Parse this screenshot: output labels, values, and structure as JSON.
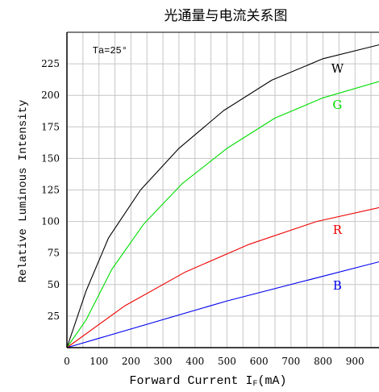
{
  "chart_data": {
    "type": "line",
    "title": "光通量与电流关系图",
    "xlabel": "Forward Current I",
    "xlabel_sub": "F",
    "xlabel_unit": "(mA)",
    "ylabel": "Relative Luminous Intensity",
    "annotation": "Ta=25°",
    "xlim": [
      0,
      975
    ],
    "ylim": [
      0,
      250
    ],
    "x_ticks": [
      0,
      100,
      200,
      300,
      400,
      500,
      600,
      700,
      800,
      900
    ],
    "x_tick_labels": [
      "0",
      "100",
      "200",
      "300",
      "400",
      "500",
      "600",
      "700",
      "800",
      "900"
    ],
    "y_ticks": [
      25,
      50,
      75,
      100,
      125,
      150,
      175,
      200,
      225
    ],
    "y_tick_labels": [
      "25",
      "50",
      "75",
      "100",
      "125",
      "150",
      "175",
      "200",
      "225"
    ],
    "x_gridlines": [
      0,
      50,
      100,
      150,
      200,
      250,
      300,
      350,
      400,
      450,
      500,
      550,
      600,
      650,
      700,
      750,
      800,
      850,
      900,
      950
    ],
    "y_gridlines": [
      25,
      50,
      75,
      100,
      125,
      150,
      175,
      200,
      225
    ],
    "grid": true,
    "series": [
      {
        "name": "W",
        "color": "#000000",
        "x": [
          0,
          60,
          130,
          230,
          350,
          490,
          640,
          800,
          975
        ],
        "y": [
          0,
          45,
          87,
          125,
          158,
          188,
          212,
          229,
          240
        ]
      },
      {
        "name": "G",
        "color": "#00dd00",
        "x": [
          0,
          60,
          140,
          240,
          360,
          500,
          650,
          800,
          975
        ],
        "y": [
          0,
          22,
          62,
          98,
          130,
          158,
          182,
          198,
          211
        ]
      },
      {
        "name": "R",
        "color": "#ee0000",
        "x": [
          0,
          180,
          370,
          570,
          780,
          975
        ],
        "y": [
          0,
          33,
          60,
          82,
          100,
          111
        ]
      },
      {
        "name": "B",
        "color": "#0000ee",
        "x": [
          0,
          500,
          975
        ],
        "y": [
          0,
          37,
          68
        ]
      }
    ],
    "series_label_positions": [
      {
        "name": "W",
        "x": 845,
        "y": 222
      },
      {
        "name": "G",
        "x": 845,
        "y": 193
      },
      {
        "name": "R",
        "x": 845,
        "y": 94
      },
      {
        "name": "B",
        "x": 845,
        "y": 50
      }
    ],
    "annotation_position": {
      "x": 80,
      "y": 236
    }
  }
}
